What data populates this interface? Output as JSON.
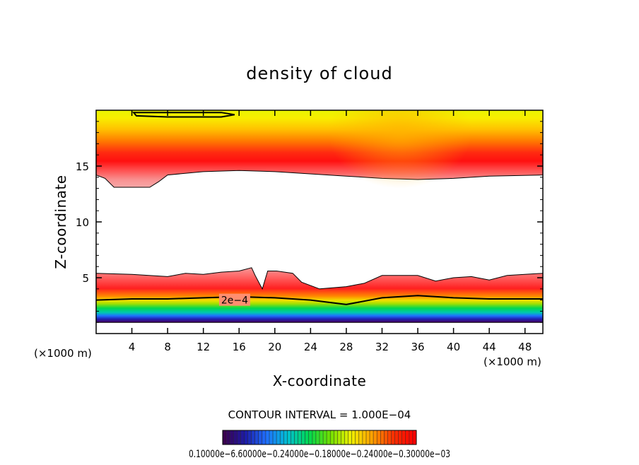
{
  "chart_data": {
    "type": "heatmap",
    "title": "density of cloud",
    "xlabel": "X-coordinate",
    "ylabel": "Z-coordinate",
    "x_unit_left": "(×1000 m)",
    "x_unit_right": "(×1000 m)",
    "x_ticks": [
      4,
      8,
      12,
      16,
      20,
      24,
      28,
      32,
      36,
      40,
      44,
      48
    ],
    "y_ticks": [
      5,
      10,
      15
    ],
    "xlim": [
      0,
      50
    ],
    "ylim": [
      0,
      20
    ],
    "contour_interval_text": "CONTOUR INTERVAL = 1.000E−04",
    "contour_label": "2e−4",
    "colorbar_labels": "0.10000e−6.60000e−0.24000e−0.18000e−0.24000e−0.30000e−03",
    "colormap_colors": [
      "#3a0050",
      "#1c1ca8",
      "#1f70ff",
      "#00c0d0",
      "#00d850",
      "#70e000",
      "#f0f000",
      "#ffa000",
      "#ff3000",
      "#ff0000"
    ],
    "layers": {
      "upper_band": {
        "bottom_boundary": [
          [
            0,
            14.2
          ],
          [
            1,
            13.9
          ],
          [
            2,
            13.1
          ],
          [
            6,
            13.1
          ],
          [
            7,
            13.6
          ],
          [
            8,
            14.2
          ],
          [
            12,
            14.5
          ],
          [
            16,
            14.6
          ],
          [
            20,
            14.5
          ],
          [
            28,
            14.1
          ],
          [
            32,
            13.9
          ],
          [
            36,
            13.8
          ],
          [
            40,
            13.9
          ],
          [
            44,
            14.1
          ],
          [
            50,
            14.2
          ]
        ],
        "max_at_z": 16,
        "contour_2e4_upper": [
          [
            4.2,
            19.8
          ],
          [
            14,
            19.8
          ],
          [
            15.5,
            19.6
          ],
          [
            14,
            19.4
          ],
          [
            8,
            19.4
          ],
          [
            4.5,
            19.5
          ]
        ]
      },
      "lower_band": {
        "top_boundary": [
          [
            0,
            5.4
          ],
          [
            4,
            5.3
          ],
          [
            8,
            5.1
          ],
          [
            10,
            5.4
          ],
          [
            12,
            5.3
          ],
          [
            14,
            5.5
          ],
          [
            16,
            5.6
          ],
          [
            17.4,
            5.9
          ],
          [
            17.8,
            5.2
          ],
          [
            18.6,
            4.0
          ],
          [
            19.2,
            5.6
          ],
          [
            20.2,
            5.6
          ],
          [
            22,
            5.4
          ],
          [
            23,
            4.6
          ],
          [
            25,
            4.0
          ],
          [
            28,
            4.2
          ],
          [
            30,
            4.5
          ],
          [
            32,
            5.2
          ],
          [
            36,
            5.2
          ],
          [
            38,
            4.7
          ],
          [
            40,
            5.0
          ],
          [
            42,
            5.1
          ],
          [
            44,
            4.8
          ],
          [
            46,
            5.2
          ],
          [
            50,
            5.4
          ]
        ],
        "contour_2e4": [
          [
            0,
            3.0
          ],
          [
            4,
            3.1
          ],
          [
            8,
            3.1
          ],
          [
            12,
            3.2
          ],
          [
            16,
            3.3
          ],
          [
            20,
            3.2
          ],
          [
            24,
            3.0
          ],
          [
            28,
            2.6
          ],
          [
            32,
            3.2
          ],
          [
            36,
            3.4
          ],
          [
            40,
            3.2
          ],
          [
            44,
            3.1
          ],
          [
            50,
            3.1
          ]
        ],
        "bottom_boundary_z": 1.0
      }
    }
  }
}
